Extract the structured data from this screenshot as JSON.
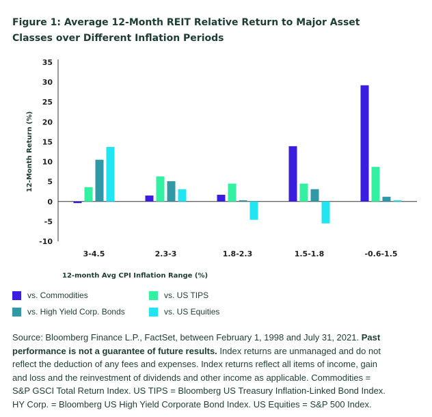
{
  "title_lines": [
    "Figure 1: Average 12-Month REIT Relative Return to Major Asset",
    "Classes over Different Inflation Periods"
  ],
  "chart_data": {
    "type": "bar",
    "title": "Figure 1: Average 12-Month REIT Relative Return to Major Asset Classes over Different Inflation Periods",
    "xlabel": "12-month Avg CPI Inflation Range (%)",
    "ylabel": "12-Month Return (%)",
    "ylim": [
      -10,
      35
    ],
    "yticks": [
      -10,
      -5,
      0,
      5,
      10,
      15,
      20,
      25,
      30,
      35
    ],
    "categories": [
      "3-4.5",
      "2.3-3",
      "1.8-2.3",
      "1.5-1.8",
      "-0.6-1.5"
    ],
    "series": [
      {
        "name": "vs. Commodities",
        "color": "#3a1ee0",
        "values": [
          -0.4,
          1.5,
          1.7,
          13.9,
          29.2
        ]
      },
      {
        "name": "vs. US TIPS",
        "color": "#34f0a2",
        "values": [
          3.6,
          6.3,
          4.5,
          4.5,
          8.7
        ]
      },
      {
        "name": "vs. High Yield Corp. Bonds",
        "color": "#3198a6",
        "values": [
          10.5,
          5.1,
          0.3,
          3.1,
          1.2
        ]
      },
      {
        "name": "vs. US Equities",
        "color": "#21e6f2",
        "values": [
          13.7,
          3.1,
          -4.6,
          -5.5,
          0.3
        ]
      }
    ],
    "grid": false,
    "legend_position": "bottom"
  },
  "source": {
    "lines": [
      {
        "text": "Source: Bloomberg Finance L.P., FactSet, between February 1, 1998 and July 31, 2021. ",
        "bold": "Past"
      },
      {
        "bold": "performance is not a guarantee of future results.",
        "text": " Index returns are unmanaged and do not"
      },
      {
        "text": "reflect the deduction of any fees and expenses. Index returns reflect all items of income, gain"
      },
      {
        "text": "and loss and the reinvestment of dividends and other income as applicable. Commodities ="
      },
      {
        "text": "S&P GSCI Total Return Index. US TIPS = Bloomberg US Treasury Inflation-Linked Bond Index."
      },
      {
        "text": "HY Corp. = Bloomberg US High Yield Corporate Bond Index. US Equities = S&P 500 Index."
      }
    ]
  }
}
